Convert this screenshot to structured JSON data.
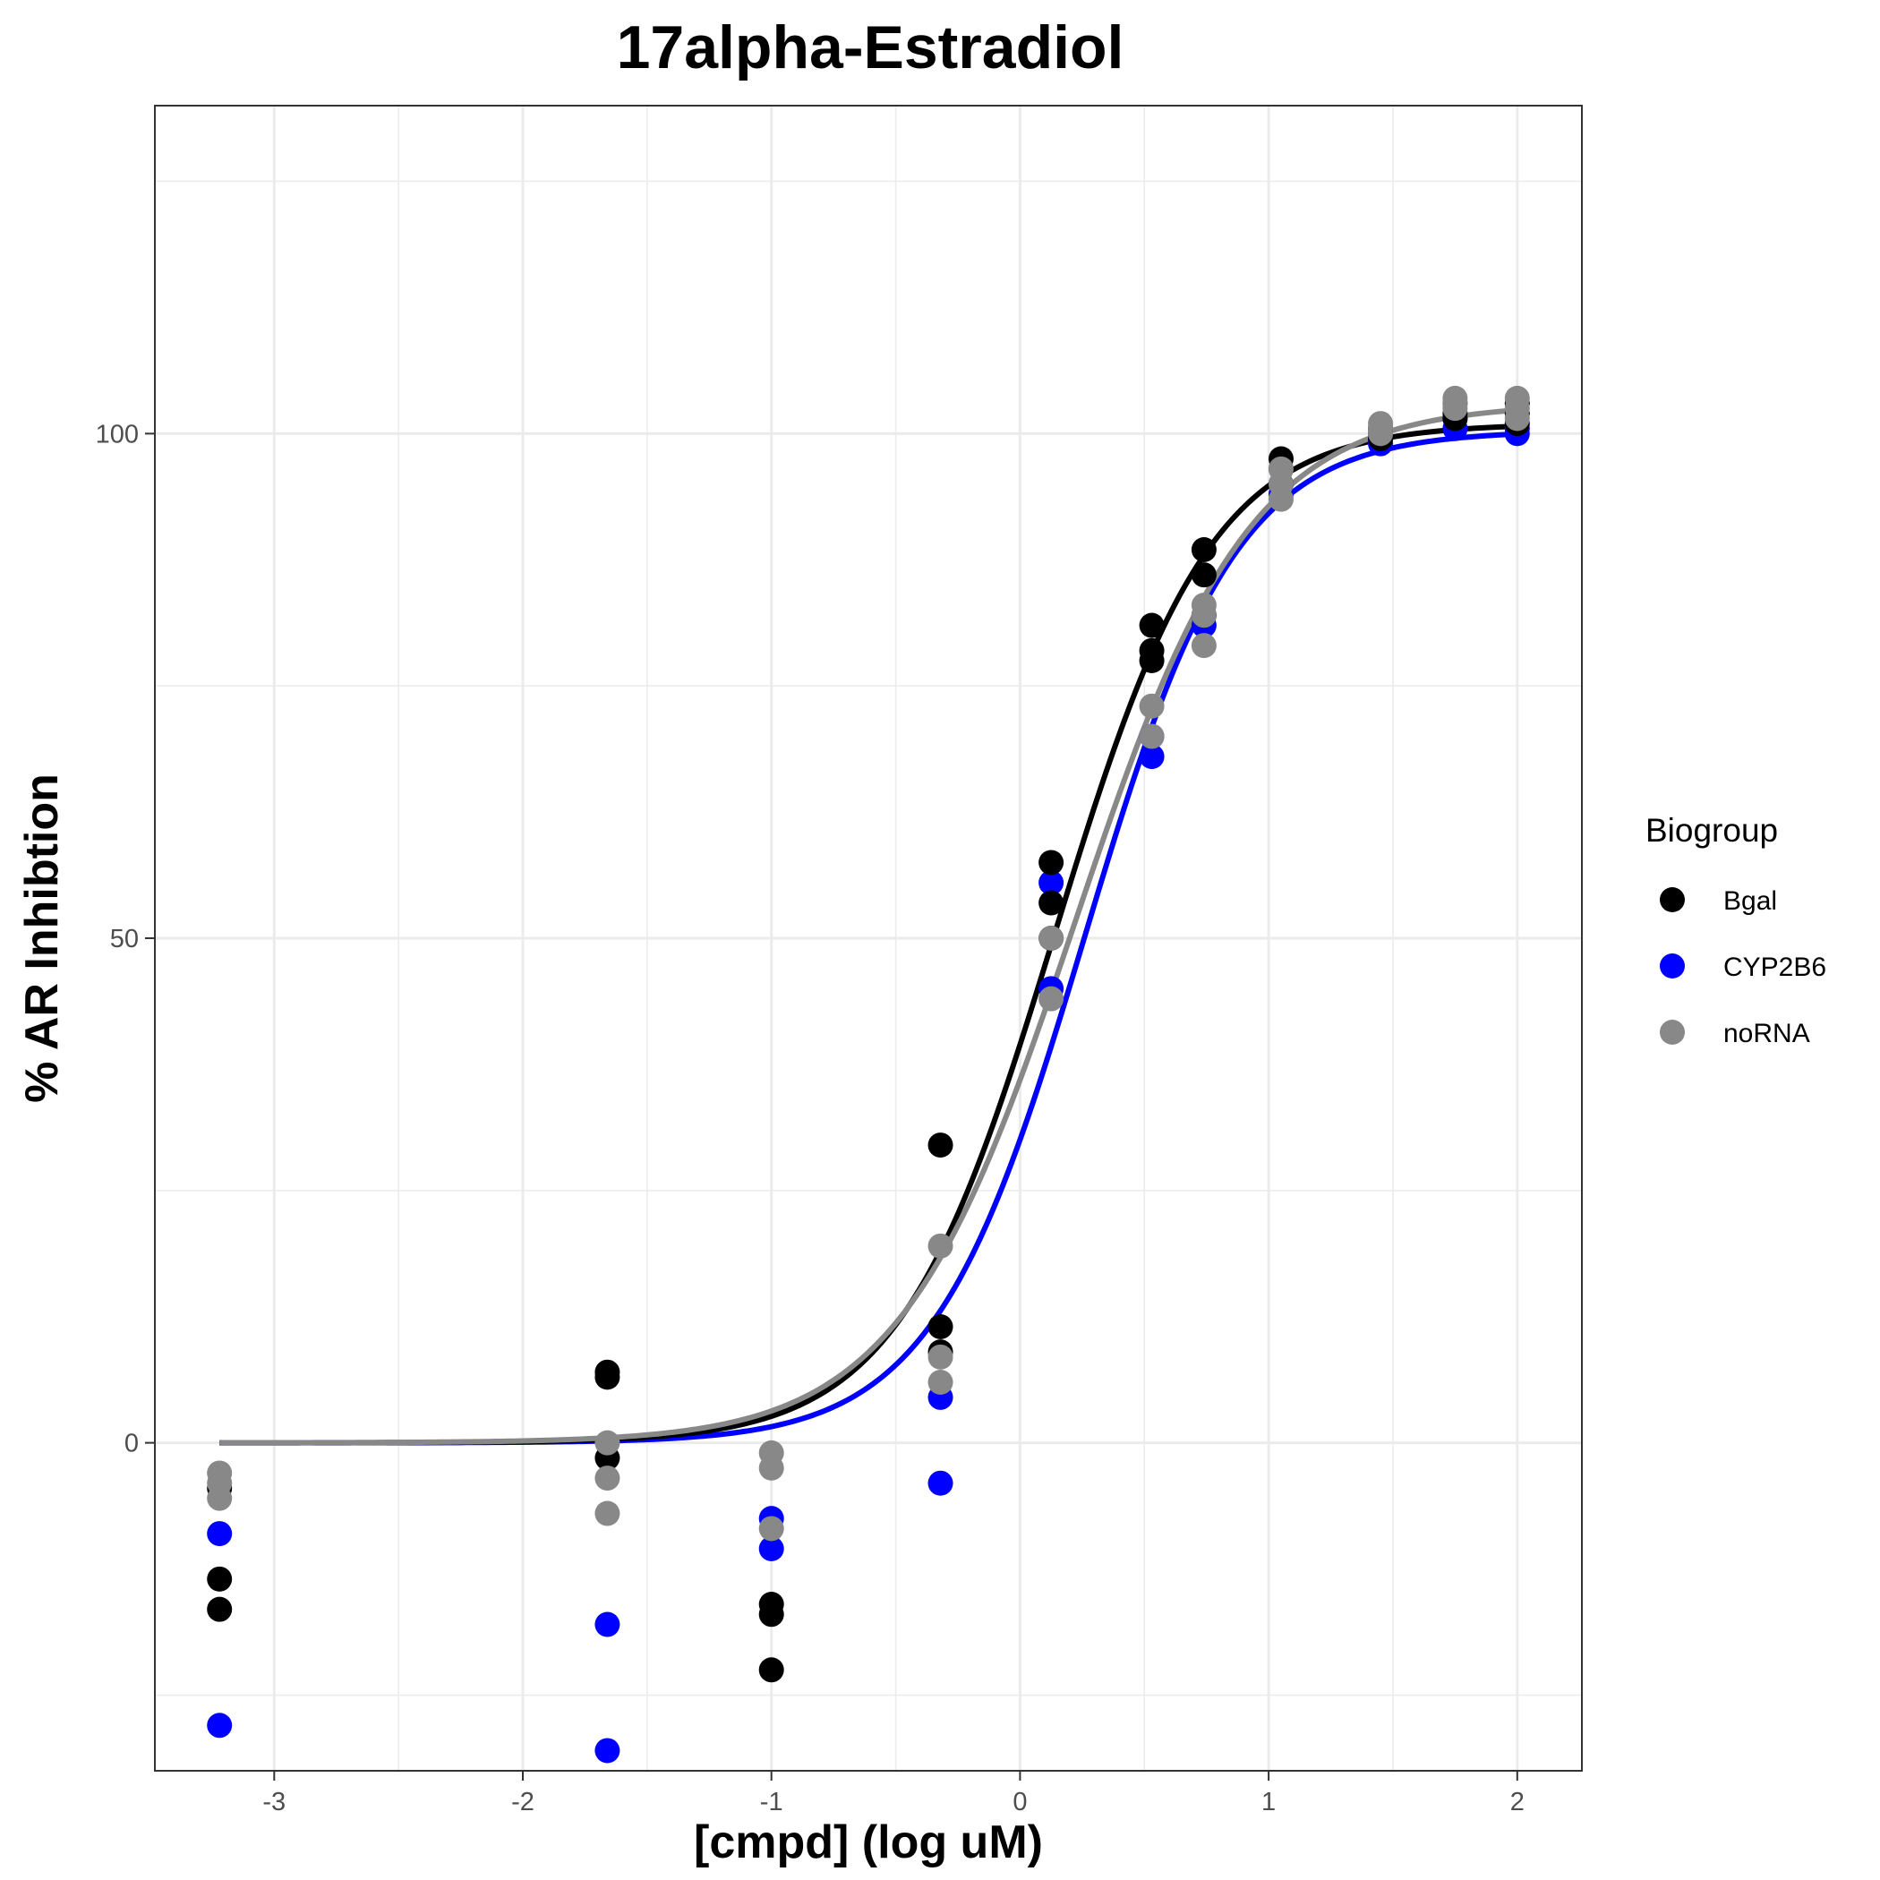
{
  "chart_data": {
    "type": "scatter",
    "title": "17alpha-Estradiol",
    "xlabel": "[cmpd] (log uM)",
    "ylabel": "% AR Inhibtion",
    "xlim": [
      -3.48,
      2.26
    ],
    "ylim": [
      -32.5,
      132.5
    ],
    "x_ticks": [
      -3,
      -2,
      -1,
      0,
      1,
      2
    ],
    "x_tick_labels": [
      "-3",
      "-2",
      "-1",
      "0",
      "1",
      "2"
    ],
    "y_ticks": [
      0,
      50,
      100
    ],
    "y_tick_labels": [
      "0",
      "50",
      "100"
    ],
    "y_minor_ticks": [
      -25,
      25,
      75,
      125
    ],
    "x_minor_ticks": [
      -2.5,
      -1.5,
      -0.5,
      0.5,
      1.5
    ],
    "grid": true,
    "legend": {
      "title": "Biogroup",
      "position": "right"
    },
    "fit_x_range": [
      -3.22,
      2.0
    ],
    "series": [
      {
        "name": "Bgal",
        "color": "#000000",
        "points": [
          [
            -3.22,
            -4.5
          ],
          [
            -3.22,
            -13.5
          ],
          [
            -3.22,
            -16.5
          ],
          [
            -1.66,
            7.0
          ],
          [
            -1.66,
            6.5
          ],
          [
            -1.66,
            -1.5
          ],
          [
            -1.0,
            -16.0
          ],
          [
            -1.0,
            -17.0
          ],
          [
            -1.0,
            -22.5
          ],
          [
            -0.32,
            29.5
          ],
          [
            -0.32,
            11.5
          ],
          [
            -0.32,
            9.0
          ],
          [
            0.125,
            57.5
          ],
          [
            0.125,
            53.5
          ],
          [
            0.125,
            50.0
          ],
          [
            0.53,
            81.0
          ],
          [
            0.53,
            78.5
          ],
          [
            0.53,
            77.5
          ],
          [
            0.74,
            88.5
          ],
          [
            0.74,
            86.0
          ],
          [
            0.74,
            82.0
          ],
          [
            1.05,
            97.5
          ],
          [
            1.05,
            96.5
          ],
          [
            1.05,
            95.0
          ],
          [
            1.45,
            100.0
          ],
          [
            1.45,
            99.5
          ],
          [
            1.45,
            100.5
          ],
          [
            1.75,
            102.0
          ],
          [
            1.75,
            101.5
          ],
          [
            1.75,
            103.0
          ],
          [
            2.0,
            103.0
          ],
          [
            2.0,
            102.0
          ],
          [
            2.0,
            101.0
          ]
        ],
        "fit": {
          "bottom": 0,
          "top": 101.0,
          "logEC50": 0.14,
          "hill": 1.38
        }
      },
      {
        "name": "CYP2B6",
        "color": "#0000ff",
        "points": [
          [
            -3.22,
            -9.0
          ],
          [
            -3.22,
            -28.0
          ],
          [
            -1.66,
            -18.0
          ],
          [
            -1.66,
            -30.5
          ],
          [
            -1.0,
            -7.5
          ],
          [
            -1.0,
            -10.5
          ],
          [
            -0.32,
            4.5
          ],
          [
            -0.32,
            -4.0
          ],
          [
            0.125,
            55.5
          ],
          [
            0.125,
            45.0
          ],
          [
            0.53,
            68.0
          ],
          [
            0.53,
            70.0
          ],
          [
            0.74,
            82.0
          ],
          [
            0.74,
            81.0
          ],
          [
            1.05,
            95.0
          ],
          [
            1.05,
            94.0
          ],
          [
            1.45,
            99.0
          ],
          [
            1.45,
            99.5
          ],
          [
            1.75,
            100.5
          ],
          [
            1.75,
            101.5
          ],
          [
            2.0,
            100.0
          ],
          [
            2.0,
            100.5
          ]
        ],
        "fit": {
          "bottom": 0,
          "top": 100.3,
          "logEC50": 0.26,
          "hill": 1.42
        }
      },
      {
        "name": "noRNA",
        "color": "#888888",
        "points": [
          [
            -3.22,
            -3.0
          ],
          [
            -3.22,
            -4.0
          ],
          [
            -3.22,
            -5.5
          ],
          [
            -1.66,
            0.0
          ],
          [
            -1.66,
            -3.5
          ],
          [
            -1.66,
            -7.0
          ],
          [
            -1.0,
            -1.0
          ],
          [
            -1.0,
            -2.5
          ],
          [
            -1.0,
            -8.5
          ],
          [
            -0.32,
            19.5
          ],
          [
            -0.32,
            8.5
          ],
          [
            -0.32,
            6.0
          ],
          [
            0.125,
            50.0
          ],
          [
            0.125,
            44.0
          ],
          [
            0.53,
            73.0
          ],
          [
            0.53,
            70.0
          ],
          [
            0.74,
            83.0
          ],
          [
            0.74,
            82.0
          ],
          [
            0.74,
            79.0
          ],
          [
            1.05,
            96.5
          ],
          [
            1.05,
            95.0
          ],
          [
            1.05,
            93.5
          ],
          [
            1.45,
            101.0
          ],
          [
            1.45,
            100.5
          ],
          [
            1.45,
            100.0
          ],
          [
            1.75,
            103.5
          ],
          [
            1.75,
            103.0
          ],
          [
            1.75,
            102.5
          ],
          [
            2.0,
            103.5
          ],
          [
            2.0,
            102.5
          ],
          [
            2.0,
            101.5
          ]
        ],
        "fit": {
          "bottom": 0,
          "top": 103.0,
          "logEC50": 0.22,
          "hill": 1.23
        }
      }
    ]
  }
}
